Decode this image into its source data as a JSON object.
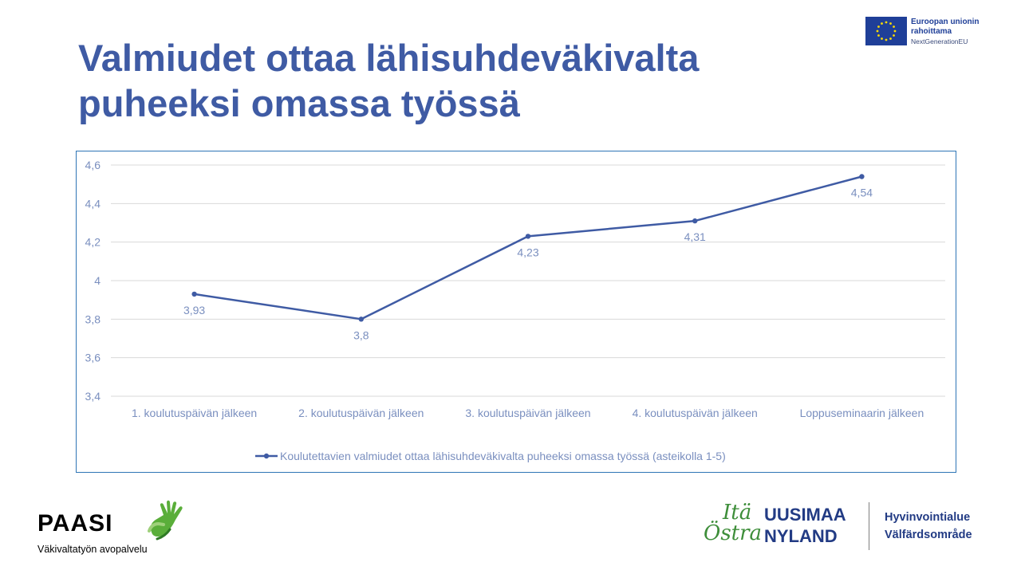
{
  "slide": {
    "title_line1": "Valmiudet ottaa lähisuhdeväkivalta",
    "title_line2": "puheeksi omassa työssä"
  },
  "eu_badge": {
    "line1": "Euroopan unionin",
    "line2": "rahoittama",
    "line3": "NextGenerationEU",
    "flag_color": "#1f3f98",
    "star_color": "#ffdd00"
  },
  "chart_data": {
    "type": "line",
    "categories": [
      "1. koulutuspäivän jälkeen",
      "2. koulutuspäivän jälkeen",
      "3. koulutuspäivän jälkeen",
      "4. koulutuspäivän jälkeen",
      "Loppuseminaarin jälkeen"
    ],
    "series": [
      {
        "name": "Koulutettavien valmiudet ottaa lähisuhdeväkivalta puheeksi omassa työssä (asteikolla 1-5)",
        "values": [
          3.93,
          3.8,
          4.23,
          4.31,
          4.54
        ],
        "labels": [
          "3,93",
          "3,8",
          "4,23",
          "4,31",
          "4,54"
        ],
        "color": "#3f5ba4"
      }
    ],
    "yticks": [
      "4,6",
      "4,4",
      "4,2",
      "4",
      "3,8",
      "3,6",
      "3,4"
    ],
    "ylim": [
      3.4,
      4.6
    ],
    "grid": true,
    "legend_position": "bottom",
    "data_label_position": "below",
    "text_color": "#7a8fbf",
    "grid_color": "#d9d9d9",
    "border_color": "#2e75b6"
  },
  "logos": {
    "paasi": {
      "name": "PAASI",
      "subtitle": "Väkivaltatyön avopalvelu",
      "icon": "hand-icon",
      "accent": "#5aae3a"
    },
    "ita_uusimaa": {
      "script_1": "Itä",
      "script_2": "Östra",
      "caps_1": "UUSIMAA",
      "caps_2": "NYLAND",
      "right_1": "Hyvinvointialue",
      "right_2": "Välfärdsområde",
      "green": "#3e8e3a",
      "blue": "#223b84"
    }
  }
}
